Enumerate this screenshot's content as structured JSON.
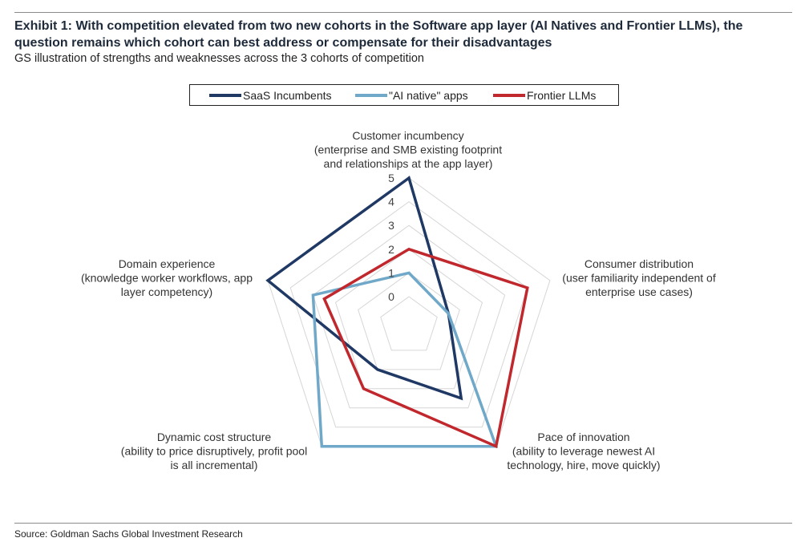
{
  "title": "Exhibit 1: With competition elevated from two new cohorts in the Software app layer (AI Natives and Frontier LLMs), the question remains which cohort can best address or compensate for their disadvantages",
  "subtitle": "GS illustration of strengths and weaknesses across the 3 cohorts of competition",
  "source": "Source: Goldman Sachs Global Investment Research",
  "chart_data": {
    "type": "radar",
    "axes": [
      [
        "Customer incumbency",
        "(enterprise and SMB existing footprint",
        "and relationships at the app layer)"
      ],
      [
        "Consumer distribution",
        "(user familiarity independent of",
        "enterprise use cases)"
      ],
      [
        "Pace of innovation",
        "(ability to leverage newest AI",
        "technology, hire, move quickly)"
      ],
      [
        "Dynamic cost structure",
        "(ability to price disruptively, profit pool",
        "is all incremental)"
      ],
      [
        "Domain experience",
        "(knowledge worker workflows, app",
        "layer competency)"
      ]
    ],
    "ticks": [
      "0",
      "1",
      "2",
      "3",
      "4",
      "5"
    ],
    "range": [
      0,
      5
    ],
    "grid": true,
    "legend_position": "top",
    "series": [
      {
        "name": "SaaS Incumbents",
        "color": "#1f3864",
        "values": [
          5,
          0.5,
          2.5,
          1,
          5
        ]
      },
      {
        "name": "\"AI native\" apps",
        "color": "#6fa8c8",
        "values": [
          1,
          0.5,
          5,
          5,
          3
        ]
      },
      {
        "name": "Frontier LLMs",
        "color": "#c0282d",
        "values": [
          2,
          4,
          5,
          2,
          2.5
        ]
      }
    ]
  }
}
